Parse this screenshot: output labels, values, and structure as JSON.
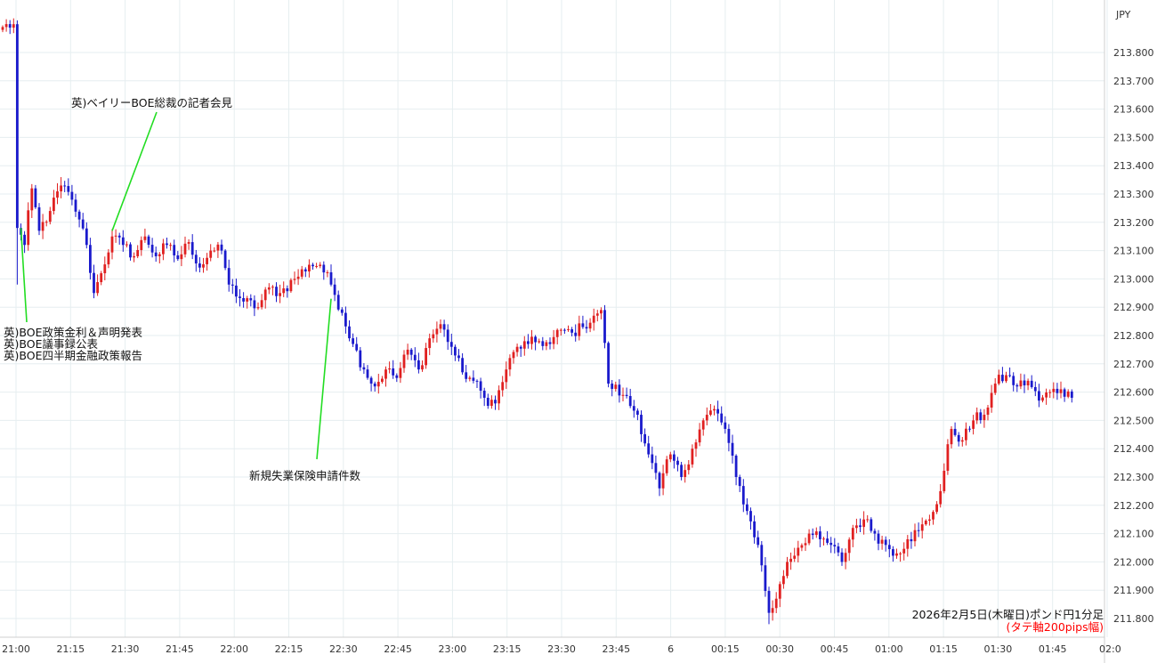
{
  "chart_data": {
    "type": "candlestick",
    "currency_label": "JPY",
    "caption_line1": "2026年2月5日(木曜日)ポンド円1分足",
    "caption_line2": "(タテ軸200pips幅)",
    "ylim": [
      211.75,
      213.95
    ],
    "y_ticks": [
      "213.800",
      "213.700",
      "213.600",
      "213.500",
      "213.400",
      "213.300",
      "213.200",
      "213.100",
      "213.000",
      "212.900",
      "212.800",
      "212.700",
      "212.600",
      "212.500",
      "212.400",
      "212.300",
      "212.200",
      "212.100",
      "212.000",
      "211.900",
      "211.800"
    ],
    "x_ticks": [
      "21:00",
      "21:15",
      "21:30",
      "21:45",
      "22:00",
      "22:15",
      "22:30",
      "22:45",
      "23:00",
      "23:15",
      "23:30",
      "23:45",
      "6",
      "00:15",
      "00:30",
      "00:45",
      "01:00",
      "01:15",
      "01:30",
      "01:45",
      "02:0"
    ],
    "up_color": "#e02020",
    "down_color": "#1a1acc",
    "annotation_color": "#22dd22",
    "annotations": [
      {
        "lines": [
          "英)BOE政策金利＆声明発表",
          "英)BOE議事録公表",
          "英)BOE四半期金融政策報告"
        ],
        "time_index": 5,
        "price": 213.18
      },
      {
        "lines": [
          "英)ベイリーBOE総裁の記者会見"
        ],
        "time_index": 30,
        "price": 213.17
      },
      {
        "lines": [
          "新規失業保険申請件数"
        ],
        "time_index": 90,
        "price": 212.93
      }
    ],
    "anchors": [
      [
        0,
        213.89
      ],
      [
        3,
        213.9
      ],
      [
        4,
        213.18
      ],
      [
        6,
        213.12
      ],
      [
        8,
        213.32
      ],
      [
        10,
        213.17
      ],
      [
        13,
        213.24
      ],
      [
        16,
        213.33
      ],
      [
        19,
        213.28
      ],
      [
        21,
        213.21
      ],
      [
        23,
        213.12
      ],
      [
        25,
        212.95
      ],
      [
        27,
        213.02
      ],
      [
        30,
        213.15
      ],
      [
        33,
        213.12
      ],
      [
        36,
        213.08
      ],
      [
        39,
        213.15
      ],
      [
        42,
        213.08
      ],
      [
        45,
        213.12
      ],
      [
        48,
        213.07
      ],
      [
        51,
        213.13
      ],
      [
        54,
        213.04
      ],
      [
        57,
        213.1
      ],
      [
        60,
        213.1
      ],
      [
        62,
        212.98
      ],
      [
        66,
        212.92
      ],
      [
        70,
        212.9
      ],
      [
        73,
        212.97
      ],
      [
        76,
        212.95
      ],
      [
        80,
        213.0
      ],
      [
        84,
        213.05
      ],
      [
        87,
        213.05
      ],
      [
        90,
        212.98
      ],
      [
        93,
        212.88
      ],
      [
        96,
        212.77
      ],
      [
        99,
        212.68
      ],
      [
        102,
        212.62
      ],
      [
        105,
        212.68
      ],
      [
        108,
        212.65
      ],
      [
        111,
        212.75
      ],
      [
        114,
        212.68
      ],
      [
        117,
        212.79
      ],
      [
        120,
        212.84
      ],
      [
        123,
        212.76
      ],
      [
        126,
        212.67
      ],
      [
        129,
        212.64
      ],
      [
        132,
        212.58
      ],
      [
        135,
        212.56
      ],
      [
        138,
        212.68
      ],
      [
        141,
        212.76
      ],
      [
        144,
        212.77
      ],
      [
        147,
        212.78
      ],
      [
        150,
        212.77
      ],
      [
        153,
        212.82
      ],
      [
        156,
        212.81
      ],
      [
        159,
        212.83
      ],
      [
        162,
        212.87
      ],
      [
        164,
        212.89
      ],
      [
        166,
        212.63
      ],
      [
        170,
        212.59
      ],
      [
        174,
        212.52
      ],
      [
        177,
        212.38
      ],
      [
        180,
        212.26
      ],
      [
        183,
        212.38
      ],
      [
        186,
        212.3
      ],
      [
        189,
        212.4
      ],
      [
        192,
        212.5
      ],
      [
        195,
        212.54
      ],
      [
        198,
        212.47
      ],
      [
        201,
        212.3
      ],
      [
        204,
        212.18
      ],
      [
        207,
        212.06
      ],
      [
        210,
        211.82
      ],
      [
        212,
        211.87
      ],
      [
        215,
        212.0
      ],
      [
        218,
        212.05
      ],
      [
        221,
        212.1
      ],
      [
        224,
        212.08
      ],
      [
        227,
        212.06
      ],
      [
        230,
        212.0
      ],
      [
        233,
        212.12
      ],
      [
        236,
        212.15
      ],
      [
        239,
        212.1
      ],
      [
        242,
        212.06
      ],
      [
        245,
        212.03
      ],
      [
        248,
        212.08
      ],
      [
        251,
        212.11
      ],
      [
        254,
        212.15
      ],
      [
        257,
        212.25
      ],
      [
        260,
        212.47
      ],
      [
        263,
        212.43
      ],
      [
        266,
        212.5
      ],
      [
        269,
        212.52
      ],
      [
        272,
        212.63
      ],
      [
        275,
        212.66
      ],
      [
        278,
        212.62
      ],
      [
        281,
        212.64
      ],
      [
        284,
        212.57
      ],
      [
        287,
        212.6
      ],
      [
        290,
        212.61
      ],
      [
        293,
        212.58
      ]
    ]
  }
}
